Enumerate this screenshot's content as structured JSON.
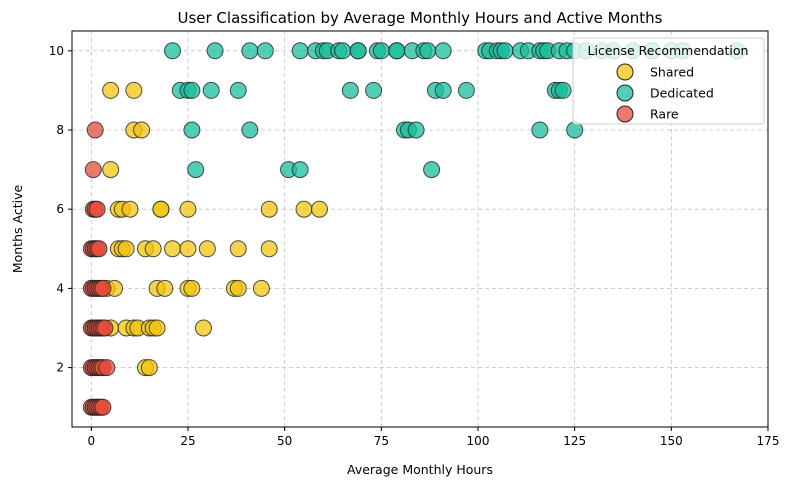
{
  "chart_data": {
    "type": "scatter",
    "title": "User Classification by Average Monthly Hours and Active Months",
    "xlabel": "Average Monthly Hours",
    "ylabel": "Months Active",
    "xlim": [
      -5,
      175
    ],
    "ylim": [
      0.5,
      10.5
    ],
    "xticks": [
      0,
      25,
      50,
      75,
      100,
      125,
      150,
      175
    ],
    "yticks": [
      2,
      4,
      6,
      8,
      10
    ],
    "grid": true,
    "legend": {
      "title": "License Recommendation",
      "placement": "top-right"
    },
    "series": [
      {
        "name": "Shared",
        "color": "#f1c40f",
        "points": [
          [
            5,
            9
          ],
          [
            11,
            9
          ],
          [
            11,
            8
          ],
          [
            13,
            8
          ],
          [
            5,
            7
          ],
          [
            7,
            6
          ],
          [
            8,
            6
          ],
          [
            10,
            6
          ],
          [
            18,
            6
          ],
          [
            18,
            6
          ],
          [
            25,
            6
          ],
          [
            46,
            6
          ],
          [
            55,
            6
          ],
          [
            59,
            6
          ],
          [
            7,
            5
          ],
          [
            8,
            5
          ],
          [
            9,
            5
          ],
          [
            14,
            5
          ],
          [
            16,
            5
          ],
          [
            21,
            5
          ],
          [
            25,
            5
          ],
          [
            30,
            5
          ],
          [
            38,
            5
          ],
          [
            46,
            5
          ],
          [
            4,
            4
          ],
          [
            6,
            4
          ],
          [
            17,
            4
          ],
          [
            19,
            4
          ],
          [
            25,
            4
          ],
          [
            26,
            4
          ],
          [
            37,
            4
          ],
          [
            38,
            4
          ],
          [
            44,
            4
          ],
          [
            5,
            3
          ],
          [
            9,
            3
          ],
          [
            11,
            3
          ],
          [
            12,
            3
          ],
          [
            15,
            3
          ],
          [
            16,
            3
          ],
          [
            17,
            3
          ],
          [
            29,
            3
          ],
          [
            14,
            2
          ],
          [
            15,
            2
          ]
        ]
      },
      {
        "name": "Dedicated",
        "color": "#1abc9c",
        "points": [
          [
            21,
            10
          ],
          [
            32,
            10
          ],
          [
            41,
            10
          ],
          [
            45,
            10
          ],
          [
            54,
            10
          ],
          [
            58,
            10
          ],
          [
            60,
            10
          ],
          [
            61,
            10
          ],
          [
            64,
            10
          ],
          [
            65,
            10
          ],
          [
            69,
            10
          ],
          [
            69,
            10
          ],
          [
            74,
            10
          ],
          [
            75,
            10
          ],
          [
            79,
            10
          ],
          [
            79,
            10
          ],
          [
            83,
            10
          ],
          [
            86,
            10
          ],
          [
            87,
            10
          ],
          [
            91,
            10
          ],
          [
            102,
            10
          ],
          [
            103,
            10
          ],
          [
            105,
            10
          ],
          [
            106,
            10
          ],
          [
            107,
            10
          ],
          [
            111,
            10
          ],
          [
            113,
            10
          ],
          [
            116,
            10
          ],
          [
            117,
            10
          ],
          [
            118,
            10
          ],
          [
            121,
            10
          ],
          [
            123,
            10
          ],
          [
            125,
            10
          ],
          [
            128,
            10
          ],
          [
            132,
            10
          ],
          [
            135,
            10
          ],
          [
            140,
            10
          ],
          [
            145,
            10
          ],
          [
            150,
            10
          ],
          [
            153,
            10
          ],
          [
            167,
            10
          ],
          [
            23,
            9
          ],
          [
            25,
            9
          ],
          [
            26,
            9
          ],
          [
            31,
            9
          ],
          [
            38,
            9
          ],
          [
            67,
            9
          ],
          [
            73,
            9
          ],
          [
            89,
            9
          ],
          [
            91,
            9
          ],
          [
            97,
            9
          ],
          [
            120,
            9
          ],
          [
            121,
            9
          ],
          [
            122,
            9
          ],
          [
            26,
            8
          ],
          [
            41,
            8
          ],
          [
            81,
            8
          ],
          [
            82,
            8
          ],
          [
            84,
            8
          ],
          [
            116,
            8
          ],
          [
            125,
            8
          ],
          [
            27,
            7
          ],
          [
            51,
            7
          ],
          [
            54,
            7
          ],
          [
            88,
            7
          ]
        ]
      },
      {
        "name": "Rare",
        "color": "#e74c3c",
        "points": [
          [
            1,
            8
          ],
          [
            0.5,
            7
          ],
          [
            0.5,
            6
          ],
          [
            1,
            6
          ],
          [
            1.5,
            6
          ],
          [
            0,
            5
          ],
          [
            0.5,
            5
          ],
          [
            1,
            5
          ],
          [
            1.5,
            5
          ],
          [
            2,
            5
          ],
          [
            0,
            4
          ],
          [
            0.5,
            4
          ],
          [
            1,
            4
          ],
          [
            1.5,
            4
          ],
          [
            2,
            4
          ],
          [
            2.5,
            4
          ],
          [
            3,
            4
          ],
          [
            0,
            3
          ],
          [
            0.5,
            3
          ],
          [
            1,
            3
          ],
          [
            1.5,
            3
          ],
          [
            2,
            3
          ],
          [
            2.5,
            3
          ],
          [
            3,
            3
          ],
          [
            3.5,
            3
          ],
          [
            0,
            2
          ],
          [
            0.5,
            2
          ],
          [
            1,
            2
          ],
          [
            1.5,
            2
          ],
          [
            2,
            2
          ],
          [
            2.5,
            2
          ],
          [
            3,
            2
          ],
          [
            4,
            2
          ],
          [
            0,
            1
          ],
          [
            0.5,
            1
          ],
          [
            1,
            1
          ],
          [
            1.5,
            1
          ],
          [
            2,
            1
          ],
          [
            2.5,
            1
          ],
          [
            3,
            1
          ]
        ]
      }
    ]
  }
}
